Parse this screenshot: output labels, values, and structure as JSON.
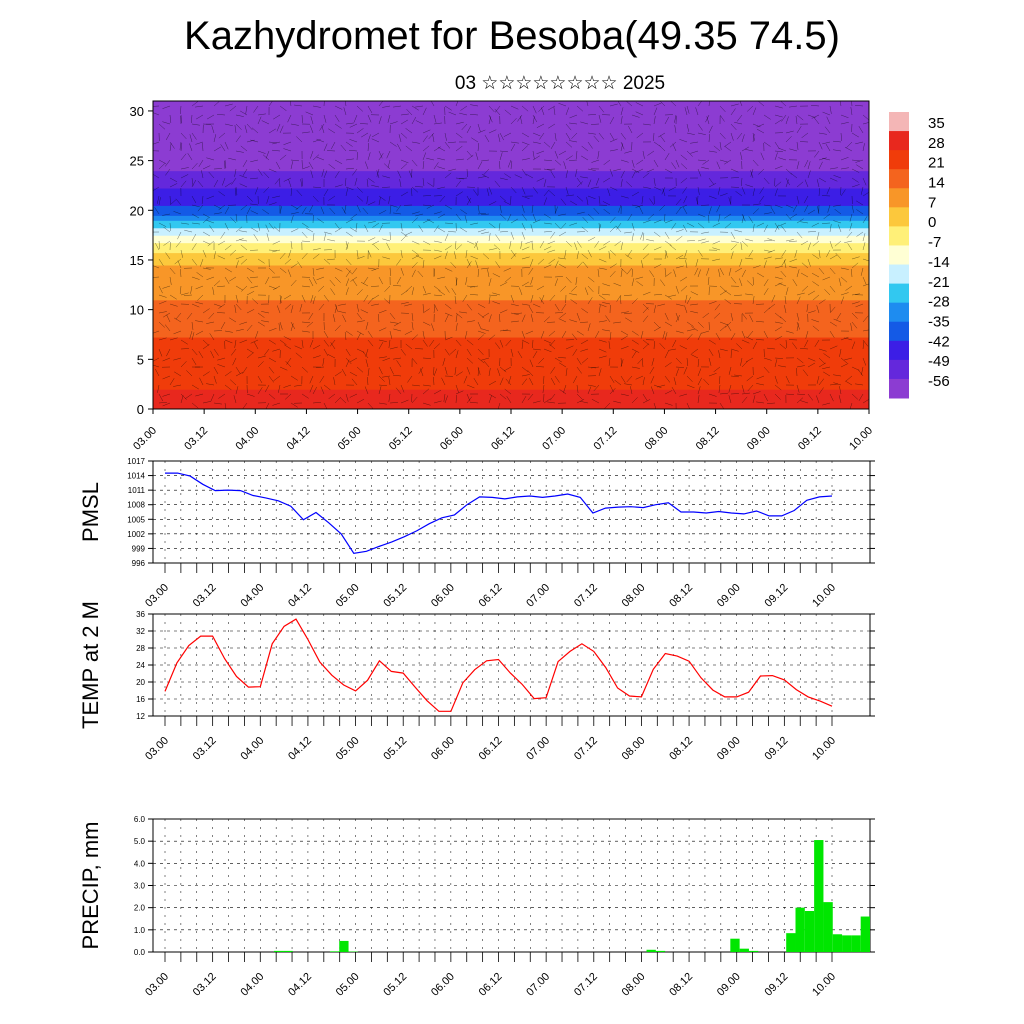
{
  "title": "Kazhydromet for Besoba(49.35 74.5)",
  "subtitle": "03 ☆☆☆☆☆☆☆☆ 2025",
  "time_ticks": [
    "03.00",
    "03.12",
    "04.00",
    "04.12",
    "05.00",
    "05.12",
    "06.00",
    "06.12",
    "07.00",
    "07.12",
    "08.00",
    "08.12",
    "09.00",
    "09.12",
    "10.00"
  ],
  "chart_data": [
    {
      "type": "heatmap",
      "description_levels": [
        0,
        5,
        10,
        15,
        20,
        25,
        30
      ],
      "colorbar_labels": [
        "35",
        "28",
        "21",
        "14",
        "7",
        "0",
        "-7",
        "-14",
        "-21",
        "-28",
        "-35",
        "-42",
        "-49",
        "-56"
      ],
      "colorbar_colors": [
        "#f4b6b6",
        "#e8281e",
        "#f03c0a",
        "#f4641e",
        "#f89628",
        "#fcc83c",
        "#fff078",
        "#ffffd4",
        "#c8f0ff",
        "#32c8f0",
        "#1e8cf0",
        "#145ae6",
        "#3c1ee6",
        "#6428dc",
        "#8c3cd2"
      ],
      "ylim": [
        0,
        31
      ],
      "temp_profile": [
        [
          0,
          30
        ],
        [
          5,
          25
        ],
        [
          10,
          16
        ],
        [
          15,
          6
        ],
        [
          17,
          -8
        ],
        [
          20,
          -40
        ],
        [
          25,
          -60
        ],
        [
          31,
          -58
        ]
      ]
    },
    {
      "type": "line",
      "ylabel": "PMSL",
      "ylim": [
        996,
        1017
      ],
      "yticks": [
        "1017",
        "1014",
        "1011",
        "1008",
        "1005",
        "1002",
        "999",
        "996"
      ],
      "color": "#0000ff",
      "values": [
        1014.5,
        1014.5,
        1013.9,
        1012.2,
        1010.9,
        1011.0,
        1010.9,
        1009.9,
        1009.4,
        1008.8,
        1007.7,
        1004.9,
        1006.4,
        1004.3,
        1002.0,
        998.0,
        998.4,
        999.4,
        1000.3,
        1001.4,
        1002.6,
        1004.1,
        1005.3,
        1005.9,
        1008.0,
        1009.6,
        1009.5,
        1009.2,
        1009.6,
        1009.8,
        1009.5,
        1009.8,
        1010.2,
        1009.5,
        1006.3,
        1007.3,
        1007.5,
        1007.6,
        1007.4,
        1008.0,
        1008.4,
        1006.5,
        1006.5,
        1006.3,
        1006.6,
        1006.3,
        1006.1,
        1006.7,
        1005.7,
        1005.7,
        1006.8,
        1008.9,
        1009.6,
        1009.8
      ]
    },
    {
      "type": "line",
      "ylabel": "TEMP at 2 M",
      "ylim": [
        12,
        36
      ],
      "yticks": [
        "36",
        "32",
        "28",
        "24",
        "20",
        "16",
        "12"
      ],
      "color": "#ff0000",
      "values": [
        17.8,
        24.5,
        28.6,
        30.8,
        30.8,
        25.5,
        21.3,
        18.8,
        18.9,
        29.0,
        33.1,
        34.8,
        30.0,
        24.7,
        21.6,
        19.3,
        17.9,
        20.4,
        25.0,
        22.5,
        22.1,
        18.8,
        15.6,
        13.1,
        13.1,
        19.8,
        22.9,
        25.0,
        25.3,
        22.1,
        19.4,
        16.1,
        16.3,
        24.8,
        27.2,
        29.0,
        27.2,
        23.4,
        18.6,
        16.7,
        16.5,
        23.0,
        26.7,
        26.1,
        24.9,
        21.0,
        18.1,
        16.5,
        16.5,
        17.6,
        21.4,
        21.5,
        20.5,
        18.2,
        16.5,
        15.5,
        14.3
      ]
    },
    {
      "type": "bar",
      "ylabel": "PRECIP, mm",
      "ylim": [
        0,
        6
      ],
      "yticks": [
        "6.0",
        "5.0",
        "4.0",
        "3.0",
        "2.0",
        "1.0",
        "0.0"
      ],
      "color": "#00e600",
      "values": [
        0,
        0,
        0,
        0,
        0,
        0,
        0,
        0,
        0,
        0,
        0,
        0,
        0,
        0.05,
        0.05,
        0,
        0,
        0,
        0,
        0.03,
        0.5,
        0.02,
        0,
        0,
        0,
        0,
        0,
        0,
        0,
        0,
        0,
        0,
        0,
        0,
        0,
        0,
        0,
        0,
        0,
        0,
        0,
        0,
        0,
        0,
        0,
        0,
        0,
        0,
        0,
        0,
        0,
        0,
        0,
        0.1,
        0.05,
        0,
        0,
        0,
        0,
        0,
        0,
        0,
        0.6,
        0.15,
        0.05,
        0,
        0,
        0,
        0.85,
        2.0,
        1.85,
        5.05,
        2.25,
        0.8,
        0.75,
        0.75,
        1.6
      ]
    }
  ]
}
